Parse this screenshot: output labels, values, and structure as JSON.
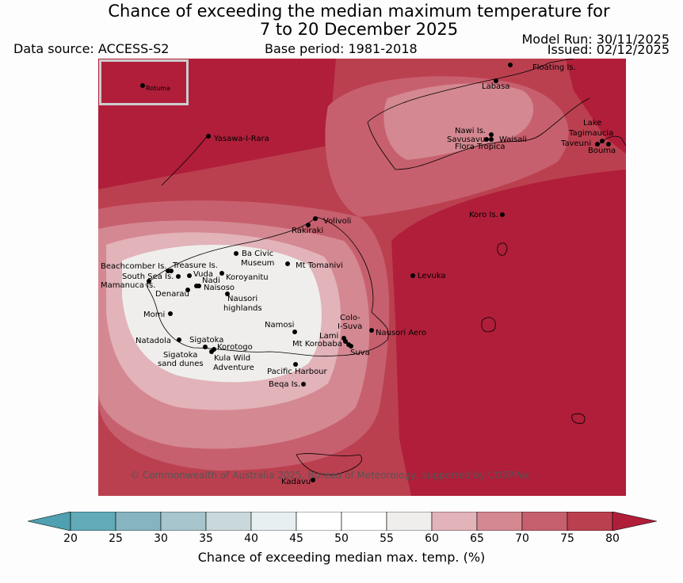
{
  "header": {
    "title_line1": "Chance of exceeding the median maximum temperature for",
    "title_line2": "7 to 20 December 2025",
    "data_source": "Data source: ACCESS-S2",
    "base_period": "Base period: 1981-2018",
    "model_run": "Model Run: 30/11/2025",
    "issued": "Issued: 02/12/2025"
  },
  "map": {
    "copyright": "© Commonwealth of Australia 2025, Bureau of Meteorology, supported by COSPPac",
    "inset_label": "Rotuma",
    "places": [
      {
        "id": "floating-is",
        "text": "Floating Is."
      },
      {
        "id": "labasa",
        "text": "Labasa"
      },
      {
        "id": "yasawa",
        "text": "Yasawa-I-Rara"
      },
      {
        "id": "nawi",
        "text": "Nawi Is."
      },
      {
        "id": "savusavu",
        "text": "Savusavu"
      },
      {
        "id": "waisali",
        "text": "Waisali"
      },
      {
        "id": "flora",
        "text": "Flora Tropica"
      },
      {
        "id": "lake",
        "text": "Lake"
      },
      {
        "id": "tagimaucia",
        "text": "Tagimaucia"
      },
      {
        "id": "taveuni",
        "text": "Taveuni"
      },
      {
        "id": "bouma",
        "text": "Bouma"
      },
      {
        "id": "koro",
        "text": "Koro Is."
      },
      {
        "id": "volivoli",
        "text": "Volivoli"
      },
      {
        "id": "rakiraki",
        "text": "Rakiraki"
      },
      {
        "id": "beachcomber",
        "text": "Beachcomber Is."
      },
      {
        "id": "treasure",
        "text": "Treasure Is."
      },
      {
        "id": "southsea",
        "text": "South Sea Is."
      },
      {
        "id": "vuda",
        "text": "Vuda"
      },
      {
        "id": "nadi",
        "text": "Nadi"
      },
      {
        "id": "mamanuca",
        "text": "Mamanuca Is."
      },
      {
        "id": "naisoso",
        "text": "Naisoso"
      },
      {
        "id": "denarau",
        "text": "Denarau"
      },
      {
        "id": "bacivic",
        "text": "Ba Civic"
      },
      {
        "id": "museum",
        "text": "Museum"
      },
      {
        "id": "mttomanivi",
        "text": "Mt Tomanivi"
      },
      {
        "id": "koroyanitu",
        "text": "Koroyanitu"
      },
      {
        "id": "nausori-h1",
        "text": "Nausori"
      },
      {
        "id": "nausori-h2",
        "text": "highlands"
      },
      {
        "id": "levuka",
        "text": "Levuka"
      },
      {
        "id": "momi",
        "text": "Momi"
      },
      {
        "id": "namosi",
        "text": "Namosi"
      },
      {
        "id": "colo1",
        "text": "Colo-"
      },
      {
        "id": "colo2",
        "text": "I-Suva"
      },
      {
        "id": "natadola",
        "text": "Natadola"
      },
      {
        "id": "sigatoka",
        "text": "Sigatoka"
      },
      {
        "id": "lami",
        "text": "Lami"
      },
      {
        "id": "nausori-aero",
        "text": "Nausori Aero"
      },
      {
        "id": "mtkorobaba",
        "text": "Mt Korobaba"
      },
      {
        "id": "korotogo",
        "text": "Korotogo"
      },
      {
        "id": "sigdunes1",
        "text": "Sigatoka"
      },
      {
        "id": "sigdunes2",
        "text": "sand dunes"
      },
      {
        "id": "kula1",
        "text": "Kula Wild"
      },
      {
        "id": "kula2",
        "text": "Adventure"
      },
      {
        "id": "suva",
        "text": "Suva"
      },
      {
        "id": "pacharbour",
        "text": "Pacific Harbour"
      },
      {
        "id": "beqa",
        "text": "Beqa Is."
      },
      {
        "id": "kadavu",
        "text": "Kadavu"
      }
    ]
  },
  "legend": {
    "title": "Chance of exceeding median max. temp. (%)",
    "ticks": [
      "20",
      "25",
      "30",
      "35",
      "40",
      "45",
      "50",
      "55",
      "60",
      "65",
      "70",
      "75",
      "80"
    ],
    "colors": [
      "#4fa0b0",
      "#62aab8",
      "#86b5c0",
      "#a6c5cc",
      "#c8d8db",
      "#e8eff0",
      "#ffffff",
      "#ffffff",
      "#efeeec",
      "#e2b3b9",
      "#d48891",
      "#c7606e",
      "#bb404f",
      "#b01e3a"
    ]
  }
}
